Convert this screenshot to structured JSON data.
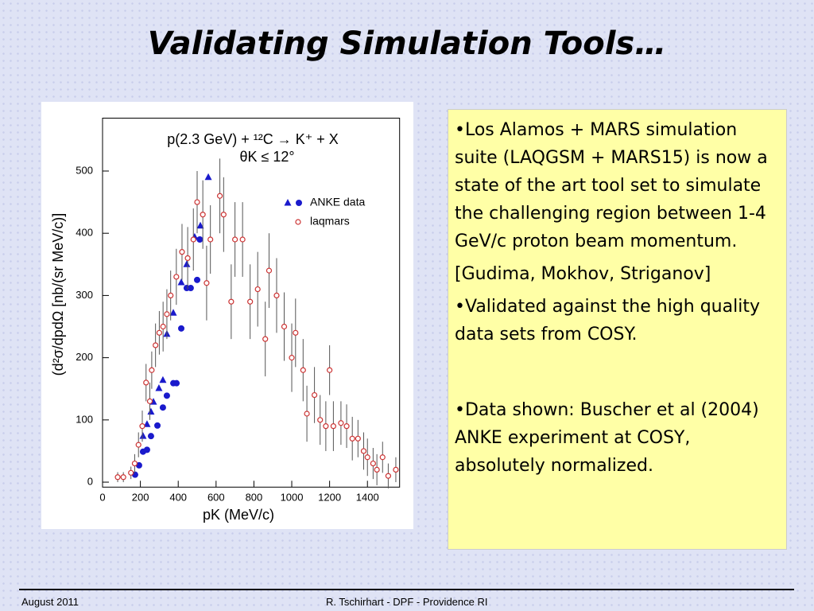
{
  "slide": {
    "title": "Validating Simulation Tools…",
    "bullets": [
      "•Los Alamos + MARS simulation suite (LAQGSM + MARS15) is now a state of the art tool set to simulate the challenging region between 1-4 GeV/c proton beam momentum.",
      "[Gudima, Mokhov, Striganov]",
      "•Validated against the high quality data sets from COSY.",
      "•Data shown: Buscher et al (2004) ANKE experiment at COSY, absolutely normalized."
    ],
    "footer": {
      "left": "August  2011",
      "center": "R. Tschirhart -  DPF - Providence RI"
    }
  },
  "chart_data": {
    "type": "scatter",
    "title": "p(2.3 GeV) + ¹²C → K⁺ + X",
    "subtitle": "θK ≤ 12°",
    "x_label": "pK (MeV/c)",
    "y_label": "(d²σ/dpdΩ [nb/(sr MeV/c)]",
    "xlim": [
      0,
      1570
    ],
    "ylim": [
      -8,
      585
    ],
    "xticks": [
      0,
      200,
      400,
      600,
      800,
      1000,
      1200,
      1400
    ],
    "yticks": [
      0,
      100,
      200,
      300,
      400,
      500
    ],
    "series": [
      {
        "name": "ANKE data",
        "color": "#1a1acc",
        "marker": "triangle",
        "x": [
          214,
          235,
          256,
          269,
          298,
          319,
          340,
          374,
          416,
          445,
          487,
          517,
          559
        ],
        "values": [
          74,
          93,
          113,
          129,
          151,
          164,
          238,
          272,
          321,
          350,
          394,
          412,
          490
        ]
      },
      {
        "color": "#1a1acc",
        "marker": "circle",
        "x": [
          172,
          193,
          214,
          235,
          256,
          290,
          319,
          340,
          374,
          391,
          416,
          445,
          466,
          500,
          514
        ],
        "values": [
          12,
          27,
          49,
          52,
          74,
          91,
          120,
          139,
          159,
          159,
          247,
          312,
          312,
          325,
          390
        ]
      },
      {
        "name": "laqmars",
        "color": "#cc3333",
        "marker": "open-circle",
        "x": [
          80,
          110,
          150,
          170,
          190,
          210,
          230,
          250,
          260,
          280,
          300,
          320,
          340,
          360,
          390,
          420,
          450,
          480,
          500,
          530,
          550,
          570,
          620,
          640,
          680,
          700,
          740,
          780,
          820,
          860,
          880,
          920,
          960,
          1000,
          1020,
          1060,
          1080,
          1120,
          1150,
          1180,
          1200,
          1220,
          1260,
          1290,
          1320,
          1350,
          1380,
          1400,
          1430,
          1450,
          1480,
          1510,
          1550
        ],
        "values": [
          8,
          8,
          15,
          30,
          60,
          90,
          160,
          130,
          180,
          220,
          240,
          250,
          270,
          300,
          330,
          370,
          360,
          390,
          450,
          430,
          320,
          390,
          460,
          430,
          290,
          390,
          390,
          290,
          310,
          230,
          340,
          300,
          250,
          200,
          240,
          180,
          110,
          140,
          100,
          90,
          180,
          90,
          95,
          90,
          70,
          70,
          50,
          40,
          30,
          20,
          40,
          10,
          20
        ],
        "errors": [
          8,
          8,
          10,
          15,
          20,
          25,
          30,
          30,
          30,
          35,
          35,
          40,
          40,
          40,
          45,
          45,
          50,
          50,
          50,
          55,
          60,
          55,
          60,
          60,
          60,
          60,
          60,
          60,
          60,
          60,
          60,
          60,
          55,
          55,
          55,
          50,
          45,
          45,
          40,
          40,
          40,
          40,
          35,
          35,
          35,
          30,
          30,
          30,
          25,
          25,
          25,
          20,
          20
        ]
      }
    ]
  }
}
